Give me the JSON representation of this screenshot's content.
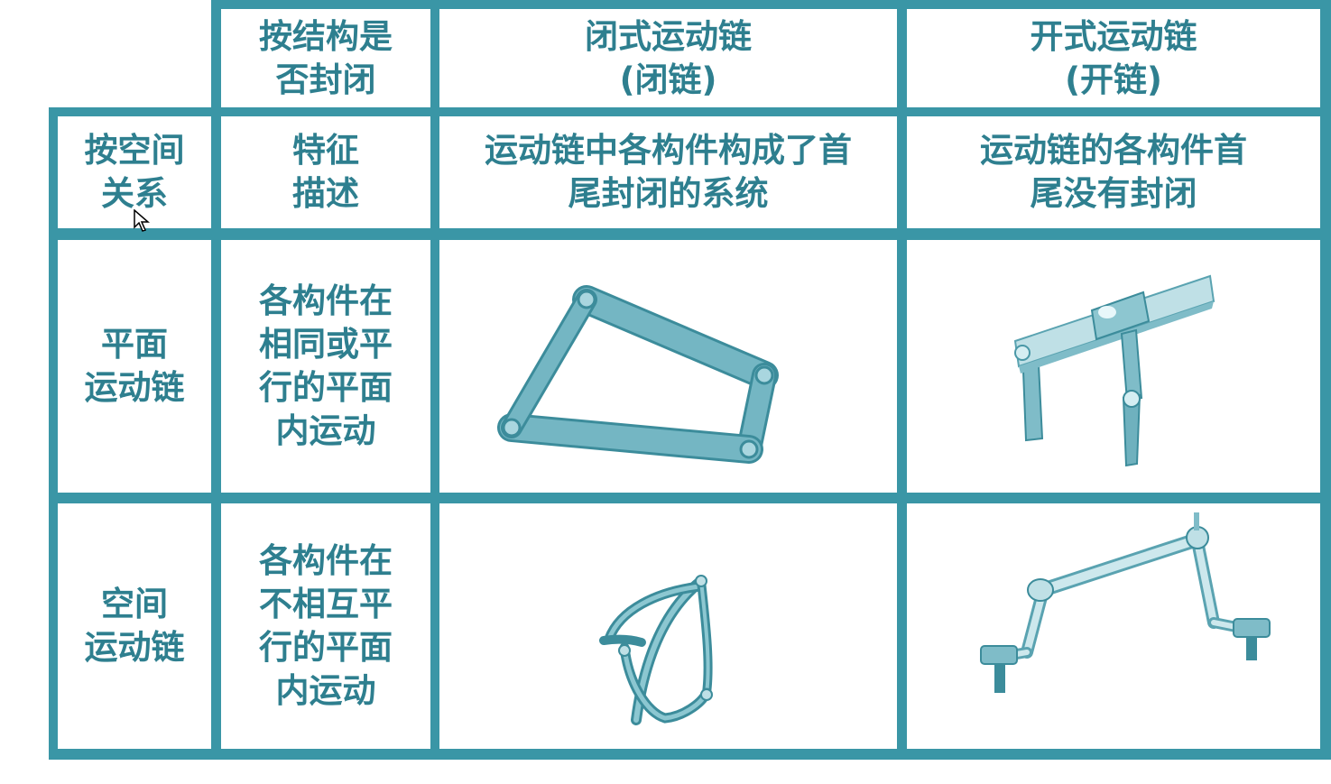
{
  "theme": {
    "grid_color": "#3a96a6",
    "text_color": "#2e7f8f",
    "link_color": "#74b6c3",
    "link_dark": "#3c8c9b"
  },
  "header": {
    "criterion": "按结构是\n否封闭",
    "closed_chain": "闭式运动链\n(闭链)",
    "open_chain": "开式运动链\n(开链)"
  },
  "row_feature": {
    "criterion": "按空间\n关系",
    "label": "特征\n描述",
    "closed_desc": "运动链中各构件构成了首\n尾封闭的系统",
    "open_desc": "运动链的各构件首\n尾没有封闭"
  },
  "row_planar": {
    "label": "平面\n运动链",
    "desc": "各构件在\n相同或平\n行的平面\n内运动",
    "closed_figure": "planar-closed-four-bar",
    "open_figure": "planar-open-chain"
  },
  "row_spatial": {
    "label": "空间\n运动链",
    "desc": "各构件在\n不相互平\n行的平面\n内运动",
    "closed_figure": "spatial-closed-chain",
    "open_figure": "spatial-open-chain"
  }
}
